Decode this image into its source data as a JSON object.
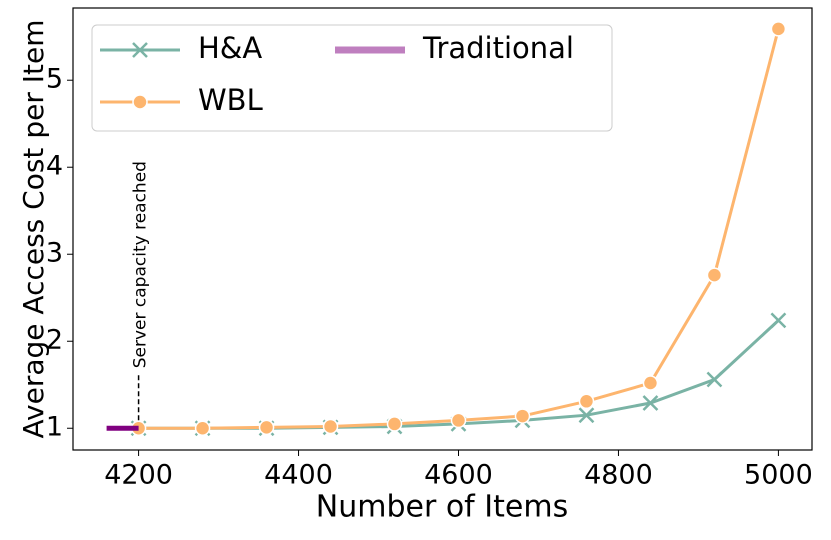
{
  "chart_data": {
    "type": "line",
    "xlabel": "Number of Items",
    "ylabel": "Average Access Cost per Item",
    "x": [
      4200,
      4280,
      4360,
      4440,
      4520,
      4600,
      4680,
      4760,
      4840,
      4920,
      5000
    ],
    "series": [
      {
        "name": "H&A",
        "color": "#7ab3a5",
        "marker": "x",
        "values": [
          1.0,
          1.0,
          1.0,
          1.01,
          1.02,
          1.05,
          1.09,
          1.15,
          1.29,
          1.56,
          2.24
        ]
      },
      {
        "name": "WBL",
        "color": "#fdb56e",
        "marker": "o",
        "values": [
          1.0,
          1.0,
          1.01,
          1.02,
          1.05,
          1.09,
          1.14,
          1.31,
          1.52,
          2.76,
          5.59
        ]
      },
      {
        "name": "Traditional",
        "color": "#800080",
        "marker": "none",
        "x": [
          4160,
          4200
        ],
        "values": [
          1.0,
          1.0
        ]
      }
    ],
    "annotation": "Server capacity reached",
    "xlim": [
      4118,
      5042
    ],
    "ylim": [
      0.75,
      5.83
    ],
    "xticks": [
      4200,
      4400,
      4600,
      4800,
      5000
    ],
    "yticks": [
      1,
      2,
      3,
      4,
      5
    ],
    "legend": "upper left"
  }
}
